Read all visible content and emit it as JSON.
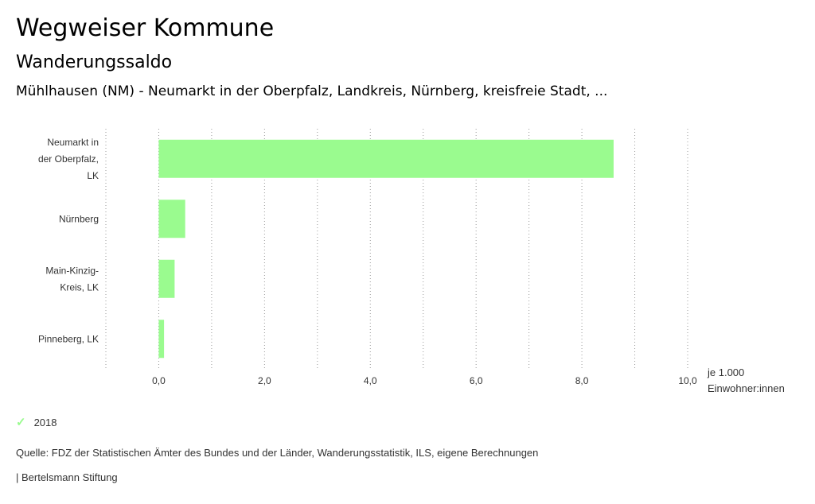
{
  "header": {
    "title": "Wegweiser Kommune",
    "subtitle": "Wanderungssaldo",
    "region": "Mühlhausen (NM) - Neumarkt in der Oberpfalz, Landkreis, Nürnberg, kreisfreie Stadt, ..."
  },
  "chart_data": {
    "type": "bar",
    "orientation": "horizontal",
    "categories": [
      [
        "Neumarkt in",
        "der Oberpfalz,",
        "LK"
      ],
      [
        "Nürnberg"
      ],
      [
        "Main-Kinzig-",
        "Kreis, LK"
      ],
      [
        "Pinneberg, LK"
      ]
    ],
    "series": [
      {
        "name": "2018",
        "values": [
          8.6,
          0.5,
          0.3,
          0.1
        ],
        "color": "#9afb8f"
      }
    ],
    "xlim": [
      -1.0,
      10.0
    ],
    "xticks": [
      0,
      2,
      4,
      6,
      8,
      10
    ],
    "tick_labels": [
      "0,0",
      "2,0",
      "4,0",
      "6,0",
      "8,0",
      "10,0"
    ],
    "xlabel": [
      "je 1.000",
      "Einwohner:innen"
    ],
    "grid": true,
    "legend_position": "bottom-left"
  },
  "legend": {
    "label": "2018",
    "check_icon": "✓",
    "color": "#9afb8f"
  },
  "footer": {
    "source": "Quelle: FDZ der Statistischen Ämter des Bundes und der Länder, Wanderungsstatistik, ILS, eigene Berechnungen",
    "brand": "| Bertelsmann Stiftung"
  }
}
